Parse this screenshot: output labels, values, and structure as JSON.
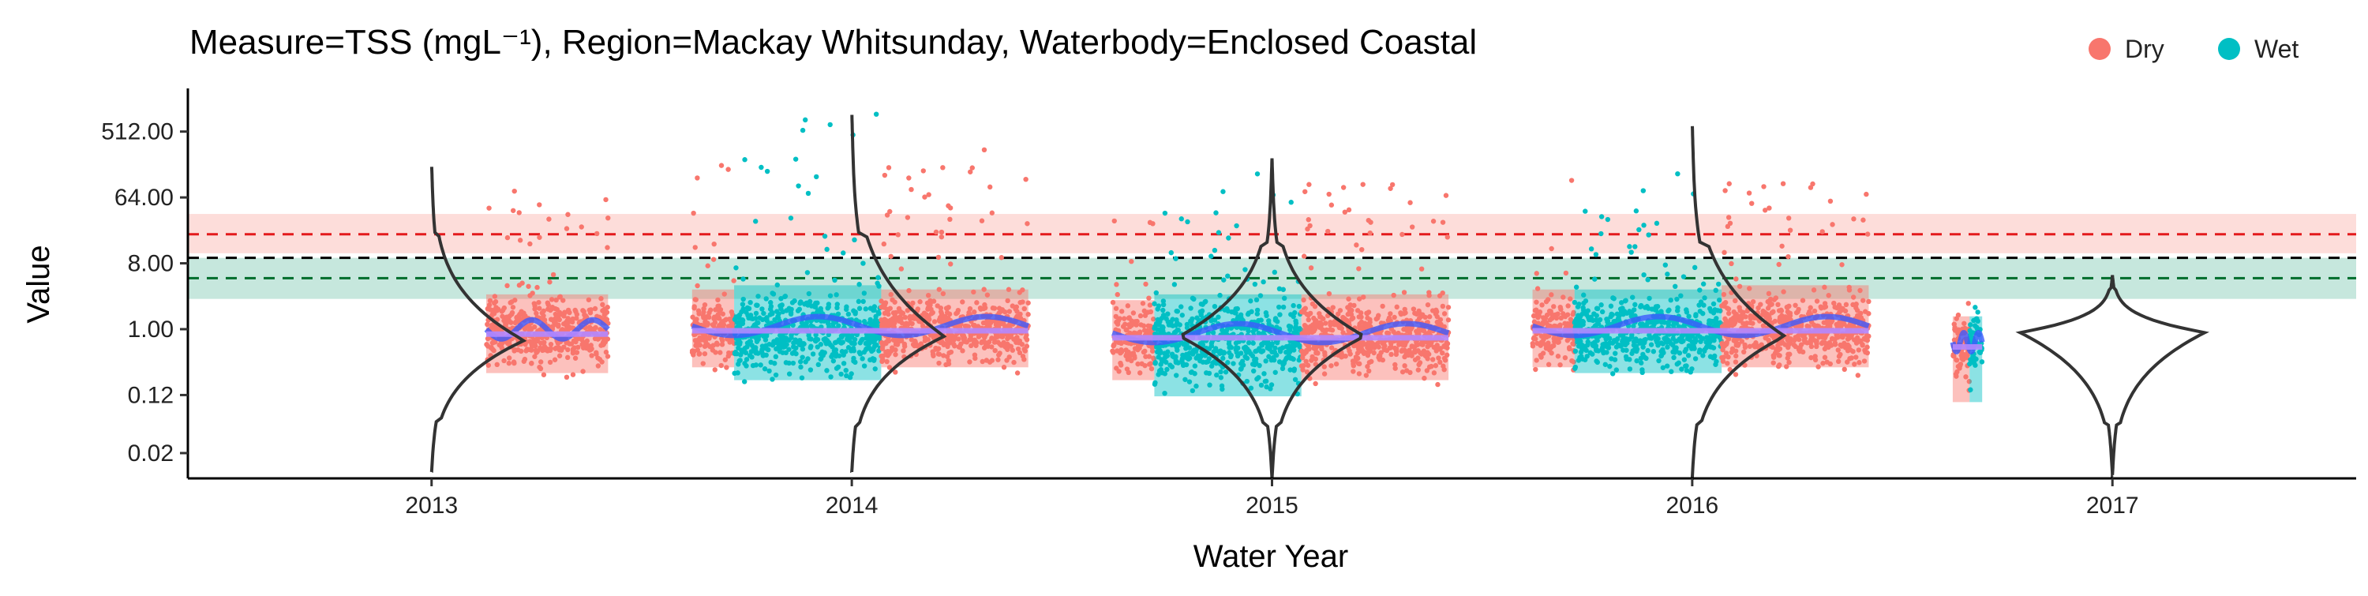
{
  "chart_data": {
    "type": "scatter",
    "title": "Measure=TSS (mgL⁻¹), Region=Mackay Whitsunday, Waterbody=Enclosed Coastal",
    "xlabel": "Water Year",
    "ylabel": "Value",
    "y_scale": "log2",
    "ylim": [
      0.009,
      2000
    ],
    "xlim": [
      2012.42,
      2017.58
    ],
    "x_ticks": [
      {
        "value": 2013,
        "label": "2013"
      },
      {
        "value": 2014,
        "label": "2014"
      },
      {
        "value": 2015,
        "label": "2015"
      },
      {
        "value": 2016,
        "label": "2016"
      },
      {
        "value": 2017,
        "label": "2017"
      }
    ],
    "y_ticks": [
      {
        "value": 0.02,
        "label": "0.02"
      },
      {
        "value": 0.125,
        "label": "0.12"
      },
      {
        "value": 1,
        "label": "1.00"
      },
      {
        "value": 8,
        "label": "8.00"
      },
      {
        "value": 64,
        "label": "64.00"
      },
      {
        "value": 512,
        "label": "512.00"
      }
    ],
    "legend": {
      "position": "top-right",
      "entries": [
        {
          "label": "Dry",
          "color": "#F8766D"
        },
        {
          "label": "Wet",
          "color": "#00BFC4"
        }
      ]
    },
    "reference_lines": [
      {
        "value": 20,
        "color": "#E31A1C",
        "style": "dashed",
        "band": [
          11,
          38
        ],
        "band_color": "#F8766D"
      },
      {
        "value": 9.5,
        "color": "#000000",
        "style": "dashed"
      },
      {
        "value": 5,
        "color": "#006D2C",
        "style": "dashed",
        "band": [
          2.6,
          9.5
        ],
        "band_color": "#1B9E77"
      }
    ],
    "periods": [
      {
        "start": 2013.13,
        "end": 2013.42,
        "segments": [
          {
            "season": "Dry",
            "start": 2013.13,
            "end": 2013.42,
            "center": 0.9,
            "low": 0.25,
            "high": 3,
            "max": 130
          }
        ]
      },
      {
        "start": 2013.62,
        "end": 2014.42,
        "segments": [
          {
            "season": "Dry",
            "start": 2013.62,
            "end": 2013.72,
            "center": 1,
            "low": 0.3,
            "high": 3.5,
            "max": 200
          },
          {
            "season": "Wet",
            "start": 2013.72,
            "end": 2014.07,
            "center": 0.9,
            "low": 0.2,
            "high": 4,
            "max": 1200
          },
          {
            "season": "Dry",
            "start": 2014.07,
            "end": 2014.42,
            "center": 1,
            "low": 0.3,
            "high": 3.5,
            "max": 300
          }
        ]
      },
      {
        "start": 2014.62,
        "end": 2015.42,
        "segments": [
          {
            "season": "Dry",
            "start": 2014.62,
            "end": 2014.72,
            "center": 0.8,
            "low": 0.2,
            "high": 2.5,
            "max": 160
          },
          {
            "season": "Wet",
            "start": 2014.72,
            "end": 2015.07,
            "center": 0.7,
            "low": 0.12,
            "high": 3,
            "max": 140
          },
          {
            "season": "Dry",
            "start": 2015.07,
            "end": 2015.42,
            "center": 0.8,
            "low": 0.2,
            "high": 3,
            "max": 170
          }
        ]
      },
      {
        "start": 2015.62,
        "end": 2016.42,
        "segments": [
          {
            "season": "Dry",
            "start": 2015.62,
            "end": 2015.72,
            "center": 1,
            "low": 0.3,
            "high": 3.5,
            "max": 300
          },
          {
            "season": "Wet",
            "start": 2015.72,
            "end": 2016.07,
            "center": 0.9,
            "low": 0.25,
            "high": 3.5,
            "max": 140
          },
          {
            "season": "Dry",
            "start": 2016.07,
            "end": 2016.42,
            "center": 1,
            "low": 0.3,
            "high": 4,
            "max": 170
          }
        ]
      },
      {
        "start": 2016.62,
        "end": 2016.69,
        "segments": [
          {
            "season": "Dry",
            "start": 2016.62,
            "end": 2016.66,
            "center": 0.6,
            "low": 0.1,
            "high": 1.5,
            "max": 3
          },
          {
            "season": "Wet",
            "start": 2016.66,
            "end": 2016.69,
            "center": 0.6,
            "low": 0.1,
            "high": 1.5,
            "max": 3
          }
        ]
      }
    ],
    "violins": [
      {
        "year": 2013,
        "center": 0.7,
        "min": 0.011,
        "max": 190,
        "neck_low": 0.055,
        "neck_high": 20
      },
      {
        "year": 2014,
        "center": 0.8,
        "min": 0.011,
        "max": 1000,
        "neck_low": 0.05,
        "neck_high": 20
      },
      {
        "year": 2015,
        "center": 0.8,
        "min": 0.009,
        "max": 220,
        "neck_low": 0.05,
        "neck_high": 15
      },
      {
        "year": 2016,
        "center": 0.8,
        "min": 0.009,
        "max": 700,
        "neck_low": 0.05,
        "neck_high": 15
      },
      {
        "year": 2017,
        "center": 0.9,
        "min": 0.01,
        "max": 5.5,
        "neck_low": 0.05,
        "neck_high": 3.5
      }
    ]
  }
}
